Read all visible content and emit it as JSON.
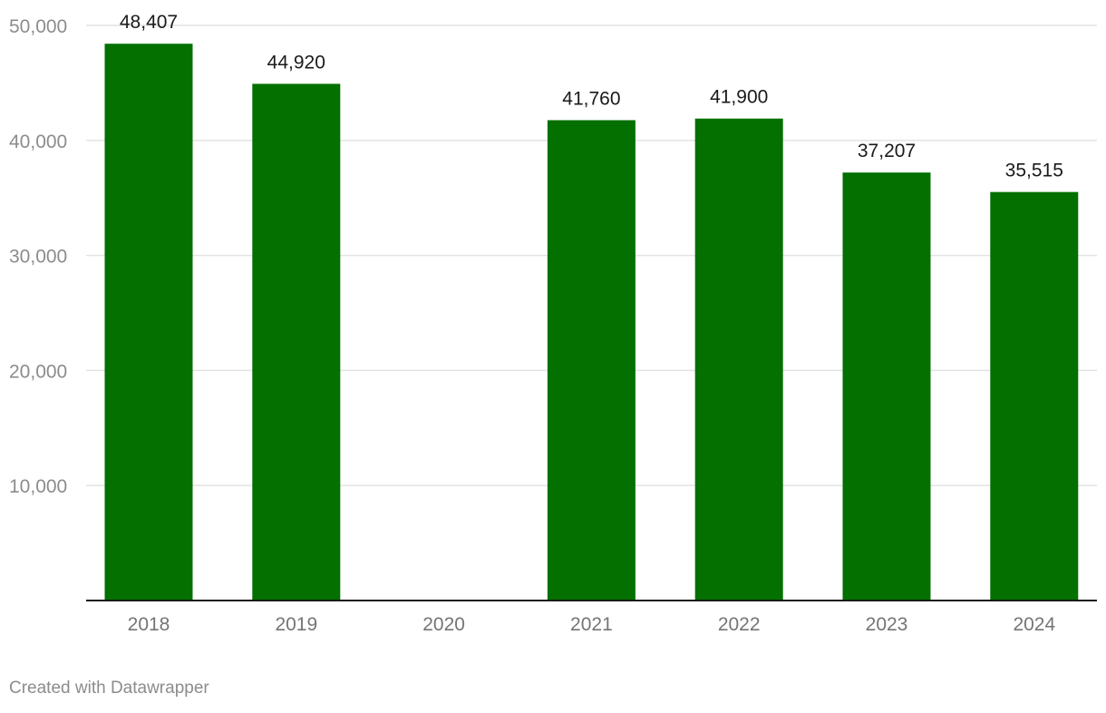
{
  "chart_data": {
    "type": "bar",
    "categories": [
      "2018",
      "2019",
      "2020",
      "2021",
      "2022",
      "2023",
      "2024"
    ],
    "values": [
      48407,
      44920,
      null,
      41760,
      41900,
      37207,
      35515
    ],
    "value_labels": [
      "48,407",
      "44,920",
      "",
      "41,760",
      "41,900",
      "37,207",
      "35,515"
    ],
    "ylim": [
      0,
      50000
    ],
    "yticks": [
      10000,
      20000,
      30000,
      40000,
      50000
    ],
    "ytick_labels": [
      "10,000",
      "20,000",
      "30,000",
      "40,000",
      "50,000"
    ],
    "grid": true,
    "bar_color": "#037000"
  },
  "footer": {
    "credit": "Created with Datawrapper"
  }
}
